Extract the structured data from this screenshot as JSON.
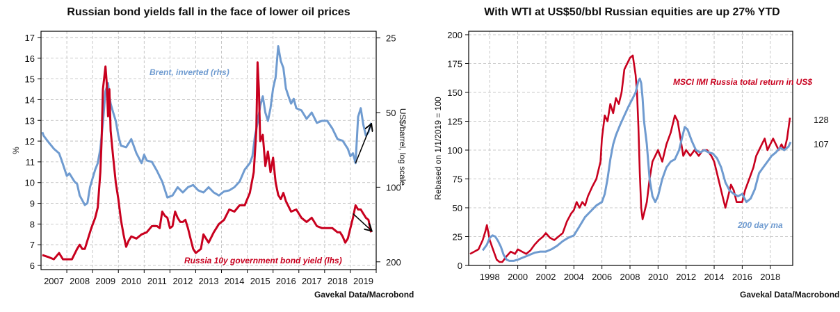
{
  "source_left": "Gavekal Data/Macrobond",
  "source_right": "Gavekal Data/Macrobond",
  "colors": {
    "red": "#c8001e",
    "blue": "#6f9bd0",
    "black": "#000000"
  },
  "chart_data": [
    {
      "type": "line",
      "title": "Russian bond yields fall in the face of lower oil prices",
      "xlabel": "",
      "ylabel": "%",
      "ylabel_right": "US$/barrel, log scale",
      "xlim": [
        2006.5,
        2019.5
      ],
      "ylim": [
        5.8,
        17.3
      ],
      "ylim_right_log_inverted": [
        23.5,
        215
      ],
      "x_ticks": [
        "2007",
        "2008",
        "2009",
        "2010",
        "2011",
        "2012",
        "2013",
        "2014",
        "2015",
        "2016",
        "2017",
        "2018",
        "2019"
      ],
      "y_ticks": [
        "6",
        "7",
        "8",
        "9",
        "10",
        "11",
        "12",
        "13",
        "14",
        "15",
        "16",
        "17"
      ],
      "y_ticks_right": [
        "25",
        "50",
        "100",
        "200"
      ],
      "grid": true,
      "series": [
        {
          "name": "Russia 10y government bond yield (lhs)",
          "axis": "left",
          "color": "red",
          "x": [
            2006.55,
            2006.8,
            2007.0,
            2007.2,
            2007.35,
            2007.5,
            2007.7,
            2007.9,
            2008.0,
            2008.1,
            2008.2,
            2008.3,
            2008.45,
            2008.6,
            2008.7,
            2008.8,
            2008.85,
            2008.9,
            2009.0,
            2009.05,
            2009.1,
            2009.15,
            2009.2,
            2009.3,
            2009.4,
            2009.5,
            2009.6,
            2009.7,
            2009.8,
            2009.9,
            2010.0,
            2010.2,
            2010.4,
            2010.6,
            2010.8,
            2011.0,
            2011.1,
            2011.2,
            2011.3,
            2011.4,
            2011.5,
            2011.6,
            2011.7,
            2011.8,
            2011.9,
            2012.0,
            2012.1,
            2012.2,
            2012.3,
            2012.4,
            2012.5,
            2012.6,
            2012.7,
            2012.8,
            2012.9,
            2013.0,
            2013.2,
            2013.4,
            2013.6,
            2013.8,
            2014.0,
            2014.2,
            2014.4,
            2014.6,
            2014.75,
            2014.85,
            2014.9,
            2014.95,
            2015.0,
            2015.1,
            2015.2,
            2015.3,
            2015.4,
            2015.5,
            2015.6,
            2015.7,
            2015.8,
            2015.9,
            2016.0,
            2016.2,
            2016.4,
            2016.6,
            2016.8,
            2017.0,
            2017.2,
            2017.4,
            2017.6,
            2017.8,
            2018.0,
            2018.1,
            2018.2,
            2018.3,
            2018.4,
            2018.5,
            2018.6,
            2018.7,
            2018.8,
            2018.9,
            2019.0,
            2019.1,
            2019.2,
            2019.3
          ],
          "y": [
            6.5,
            6.4,
            6.3,
            6.6,
            6.3,
            6.3,
            6.3,
            6.8,
            7.0,
            6.8,
            6.8,
            7.2,
            7.8,
            8.3,
            8.8,
            10.5,
            12.0,
            14.5,
            15.6,
            14.8,
            13.2,
            14.5,
            12.5,
            11.2,
            10.0,
            9.2,
            8.2,
            7.5,
            6.9,
            7.2,
            7.4,
            7.3,
            7.5,
            7.6,
            7.9,
            7.9,
            7.8,
            8.6,
            8.4,
            8.3,
            7.8,
            7.9,
            8.6,
            8.3,
            8.1,
            8.1,
            8.2,
            7.8,
            7.3,
            6.8,
            6.6,
            6.7,
            6.8,
            7.5,
            7.3,
            7.1,
            7.6,
            8.0,
            8.2,
            8.7,
            8.6,
            8.9,
            8.9,
            9.5,
            10.5,
            12.5,
            15.8,
            14.5,
            12.0,
            12.3,
            10.8,
            11.5,
            10.5,
            11.2,
            10.0,
            9.4,
            9.2,
            9.5,
            9.1,
            8.6,
            8.7,
            8.3,
            8.1,
            8.3,
            7.9,
            7.8,
            7.8,
            7.8,
            7.6,
            7.6,
            7.4,
            7.1,
            7.3,
            7.8,
            8.3,
            8.9,
            8.7,
            8.7,
            8.5,
            8.3,
            8.2,
            7.6
          ]
        },
        {
          "name": "Brent, inverted (rhs)",
          "axis": "right",
          "color": "blue",
          "x": [
            2006.55,
            2006.6,
            2006.8,
            2007.0,
            2007.2,
            2007.3,
            2007.5,
            2007.6,
            2007.8,
            2007.9,
            2008.0,
            2008.2,
            2008.3,
            2008.4,
            2008.5,
            2008.6,
            2008.7,
            2008.8,
            2008.9,
            2009.0,
            2009.1,
            2009.15,
            2009.2,
            2009.3,
            2009.4,
            2009.5,
            2009.6,
            2009.8,
            2010.0,
            2010.2,
            2010.4,
            2010.5,
            2010.6,
            2010.8,
            2011.0,
            2011.2,
            2011.4,
            2011.6,
            2011.8,
            2012.0,
            2012.2,
            2012.4,
            2012.6,
            2012.8,
            2013.0,
            2013.2,
            2013.4,
            2013.6,
            2013.8,
            2014.0,
            2014.2,
            2014.4,
            2014.6,
            2014.7,
            2014.8,
            2014.9,
            2015.0,
            2015.1,
            2015.2,
            2015.3,
            2015.4,
            2015.5,
            2015.6,
            2015.7,
            2015.8,
            2015.9,
            2016.0,
            2016.1,
            2016.2,
            2016.3,
            2016.4,
            2016.6,
            2016.8,
            2017.0,
            2017.2,
            2017.4,
            2017.6,
            2017.8,
            2018.0,
            2018.2,
            2018.4,
            2018.5,
            2018.6,
            2018.7,
            2018.8,
            2018.9,
            2019.0,
            2019.1,
            2019.2,
            2019.3
          ],
          "y": [
            60,
            62,
            66,
            70,
            73,
            78,
            90,
            88,
            95,
            97,
            108,
            118,
            116,
            100,
            92,
            85,
            80,
            70,
            55,
            41,
            38,
            43,
            46,
            50,
            54,
            62,
            68,
            69,
            64,
            73,
            80,
            74,
            78,
            79,
            86,
            95,
            110,
            108,
            100,
            105,
            100,
            98,
            103,
            105,
            100,
            105,
            108,
            104,
            103,
            100,
            95,
            85,
            80,
            75,
            62,
            55,
            47,
            43,
            50,
            54,
            48,
            40,
            36,
            27,
            31,
            33,
            40,
            43,
            46,
            44,
            48,
            49,
            53,
            50,
            55,
            54,
            54,
            58,
            64,
            65,
            70,
            75,
            73,
            80,
            52,
            48,
            56,
            62,
            60,
            55
          ]
        }
      ],
      "annotations": [
        {
          "text": "Brent, inverted (rhs)",
          "color": "blue"
        },
        {
          "text": "Russia 10y government bond yield (lhs)",
          "color": "red"
        },
        {
          "type": "arrow",
          "direction": "up-right",
          "from": [
            2018.7,
            80
          ],
          "to": [
            2019.3,
            56
          ],
          "axis": "right"
        },
        {
          "type": "arrow",
          "direction": "down-right",
          "from": [
            2018.6,
            8.5
          ],
          "to": [
            2019.3,
            7.7
          ],
          "axis": "left"
        }
      ]
    },
    {
      "type": "line",
      "title": "With WTI at US$50/bbl Russian equities are up 27% YTD",
      "xlabel": "",
      "ylabel": "Rebased on 1/1/2019 = 100",
      "xlim": [
        1996.5,
        2019.6
      ],
      "ylim": [
        0,
        203
      ],
      "x_ticks": [
        "1998",
        "2000",
        "2002",
        "2004",
        "2006",
        "2008",
        "2010",
        "2012",
        "2014",
        "2016",
        "2018"
      ],
      "y_ticks": [
        "0",
        "25",
        "50",
        "75",
        "100",
        "125",
        "150",
        "175",
        "200"
      ],
      "grid": true,
      "series": [
        {
          "name": "MSCI IMI Russia total return in US$",
          "color": "red",
          "end_value": 128,
          "x": [
            1996.6,
            1996.9,
            1997.2,
            1997.5,
            1997.7,
            1997.8,
            1998.0,
            1998.2,
            1998.5,
            1998.7,
            1998.9,
            1999.2,
            1999.5,
            1999.8,
            2000.0,
            2000.3,
            2000.6,
            2000.9,
            2001.2,
            2001.5,
            2001.8,
            2002.0,
            2002.3,
            2002.6,
            2002.9,
            2003.2,
            2003.5,
            2003.8,
            2004.0,
            2004.2,
            2004.4,
            2004.6,
            2004.8,
            2005.0,
            2005.3,
            2005.6,
            2005.9,
            2006.0,
            2006.2,
            2006.4,
            2006.6,
            2006.8,
            2007.0,
            2007.2,
            2007.4,
            2007.6,
            2007.8,
            2008.0,
            2008.2,
            2008.4,
            2008.5,
            2008.6,
            2008.7,
            2008.8,
            2008.9,
            2009.0,
            2009.2,
            2009.4,
            2009.6,
            2009.8,
            2010.0,
            2010.3,
            2010.6,
            2010.9,
            2011.2,
            2011.4,
            2011.6,
            2011.8,
            2012.0,
            2012.3,
            2012.6,
            2012.9,
            2013.2,
            2013.5,
            2013.8,
            2014.0,
            2014.2,
            2014.4,
            2014.6,
            2014.8,
            2015.0,
            2015.2,
            2015.4,
            2015.6,
            2015.8,
            2016.0,
            2016.2,
            2016.5,
            2016.8,
            2017.0,
            2017.2,
            2017.4,
            2017.6,
            2017.8,
            2018.0,
            2018.2,
            2018.4,
            2018.6,
            2018.8,
            2019.0,
            2019.2,
            2019.4
          ],
          "y": [
            10,
            12,
            14,
            22,
            30,
            35,
            22,
            15,
            5,
            3,
            3,
            8,
            12,
            10,
            14,
            12,
            10,
            13,
            18,
            22,
            25,
            28,
            24,
            22,
            25,
            28,
            38,
            45,
            48,
            55,
            50,
            55,
            52,
            60,
            68,
            75,
            90,
            110,
            130,
            125,
            140,
            132,
            145,
            140,
            150,
            170,
            175,
            180,
            182,
            165,
            150,
            120,
            80,
            50,
            40,
            45,
            55,
            75,
            90,
            95,
            100,
            90,
            105,
            115,
            130,
            125,
            110,
            95,
            100,
            95,
            100,
            95,
            100,
            100,
            95,
            90,
            80,
            70,
            60,
            50,
            60,
            70,
            65,
            55,
            55,
            55,
            65,
            75,
            85,
            95,
            100,
            105,
            110,
            100,
            105,
            110,
            105,
            100,
            105,
            100,
            110,
            128
          ]
        },
        {
          "name": "200 day ma",
          "color": "blue",
          "end_value": 107,
          "x": [
            1997.5,
            1997.8,
            1998.0,
            1998.2,
            1998.4,
            1998.6,
            1998.8,
            1999.0,
            1999.2,
            1999.4,
            1999.7,
            2000.0,
            2000.4,
            2000.8,
            2001.2,
            2001.6,
            2002.0,
            2002.4,
            2002.8,
            2003.2,
            2003.6,
            2004.0,
            2004.4,
            2004.8,
            2005.2,
            2005.6,
            2006.0,
            2006.2,
            2006.4,
            2006.6,
            2006.8,
            2007.0,
            2007.3,
            2007.6,
            2007.9,
            2008.2,
            2008.4,
            2008.5,
            2008.6,
            2008.7,
            2008.8,
            2008.9,
            2009.0,
            2009.2,
            2009.4,
            2009.6,
            2009.8,
            2010.0,
            2010.3,
            2010.6,
            2010.9,
            2011.2,
            2011.5,
            2011.7,
            2011.9,
            2012.1,
            2012.4,
            2012.7,
            2013.0,
            2013.3,
            2013.6,
            2013.9,
            2014.2,
            2014.5,
            2014.8,
            2015.1,
            2015.4,
            2015.7,
            2016.0,
            2016.3,
            2016.6,
            2016.9,
            2017.2,
            2017.5,
            2017.8,
            2018.1,
            2018.4,
            2018.7,
            2019.0,
            2019.3,
            2019.45
          ],
          "y": [
            13,
            18,
            24,
            26,
            25,
            21,
            16,
            9,
            5,
            4,
            4,
            5,
            7,
            9,
            11,
            12,
            12,
            14,
            17,
            21,
            24,
            26,
            34,
            42,
            47,
            52,
            55,
            62,
            75,
            92,
            105,
            113,
            122,
            130,
            138,
            145,
            150,
            155,
            160,
            162,
            158,
            145,
            125,
            105,
            75,
            60,
            55,
            60,
            75,
            85,
            90,
            92,
            100,
            110,
            120,
            118,
            108,
            100,
            98,
            100,
            98,
            97,
            93,
            85,
            72,
            65,
            62,
            60,
            62,
            55,
            58,
            66,
            80,
            85,
            90,
            95,
            98,
            102,
            100,
            103,
            107
          ]
        }
      ],
      "annotations": [
        {
          "text": "MSCI IMI Russia total return in US$",
          "color": "red"
        },
        {
          "text": "200 day ma",
          "color": "blue"
        },
        {
          "text": "128",
          "color": "red"
        },
        {
          "text": "107",
          "color": "blue"
        }
      ]
    }
  ]
}
